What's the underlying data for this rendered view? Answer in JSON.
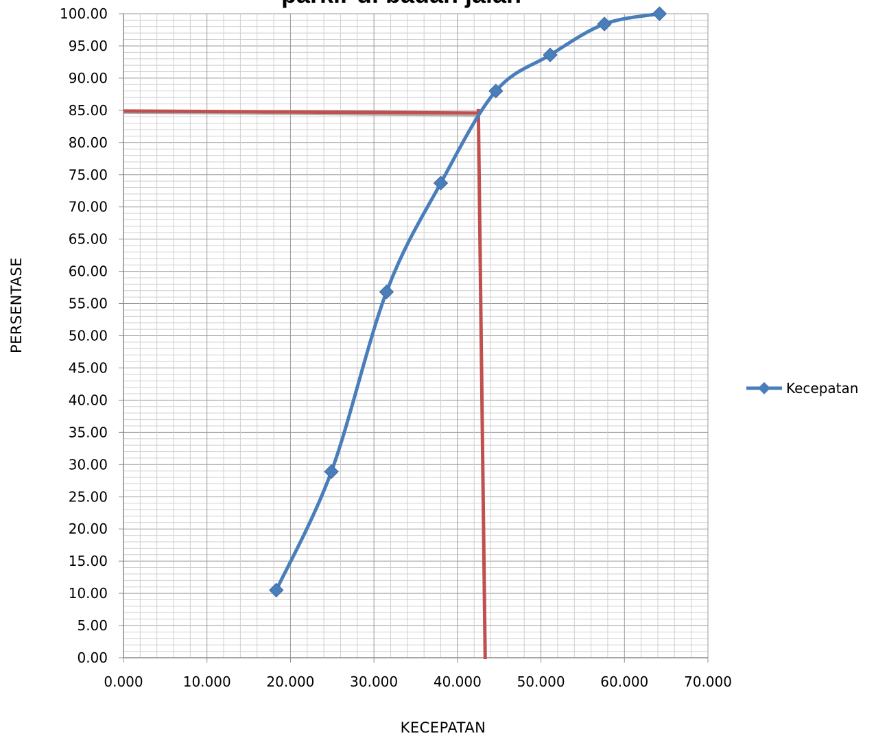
{
  "chart_data": {
    "type": "line",
    "title": "parkir di badan jalan",
    "xlabel": "KECEPATAN",
    "ylabel": "PERSENTASE",
    "xlim": [
      0,
      70
    ],
    "ylim": [
      0,
      100
    ],
    "x_ticks": [
      "0.000",
      "10.000",
      "20.000",
      "30.000",
      "40.000",
      "50.000",
      "60.000",
      "70.000"
    ],
    "y_ticks": [
      "0.00",
      "5.00",
      "10.00",
      "15.00",
      "20.00",
      "25.00",
      "30.00",
      "35.00",
      "40.00",
      "45.00",
      "50.00",
      "55.00",
      "60.00",
      "65.00",
      "70.00",
      "75.00",
      "80.00",
      "85.00",
      "90.00",
      "95.00",
      "100.00"
    ],
    "grid": true,
    "legend_position": "right",
    "series": [
      {
        "name": "Kecepatan",
        "color": "#4a7ebb",
        "marker": "diamond",
        "smooth": true,
        "x": [
          18.3,
          24.9,
          31.5,
          38.0,
          44.6,
          51.1,
          57.6,
          64.2
        ],
        "y": [
          10.5,
          28.9,
          56.8,
          73.7,
          88.0,
          93.6,
          98.4,
          100.0
        ]
      }
    ],
    "reference_lines": {
      "color": "#c0504d",
      "horizontal_y": 85,
      "vertical_x": 42.5
    }
  }
}
